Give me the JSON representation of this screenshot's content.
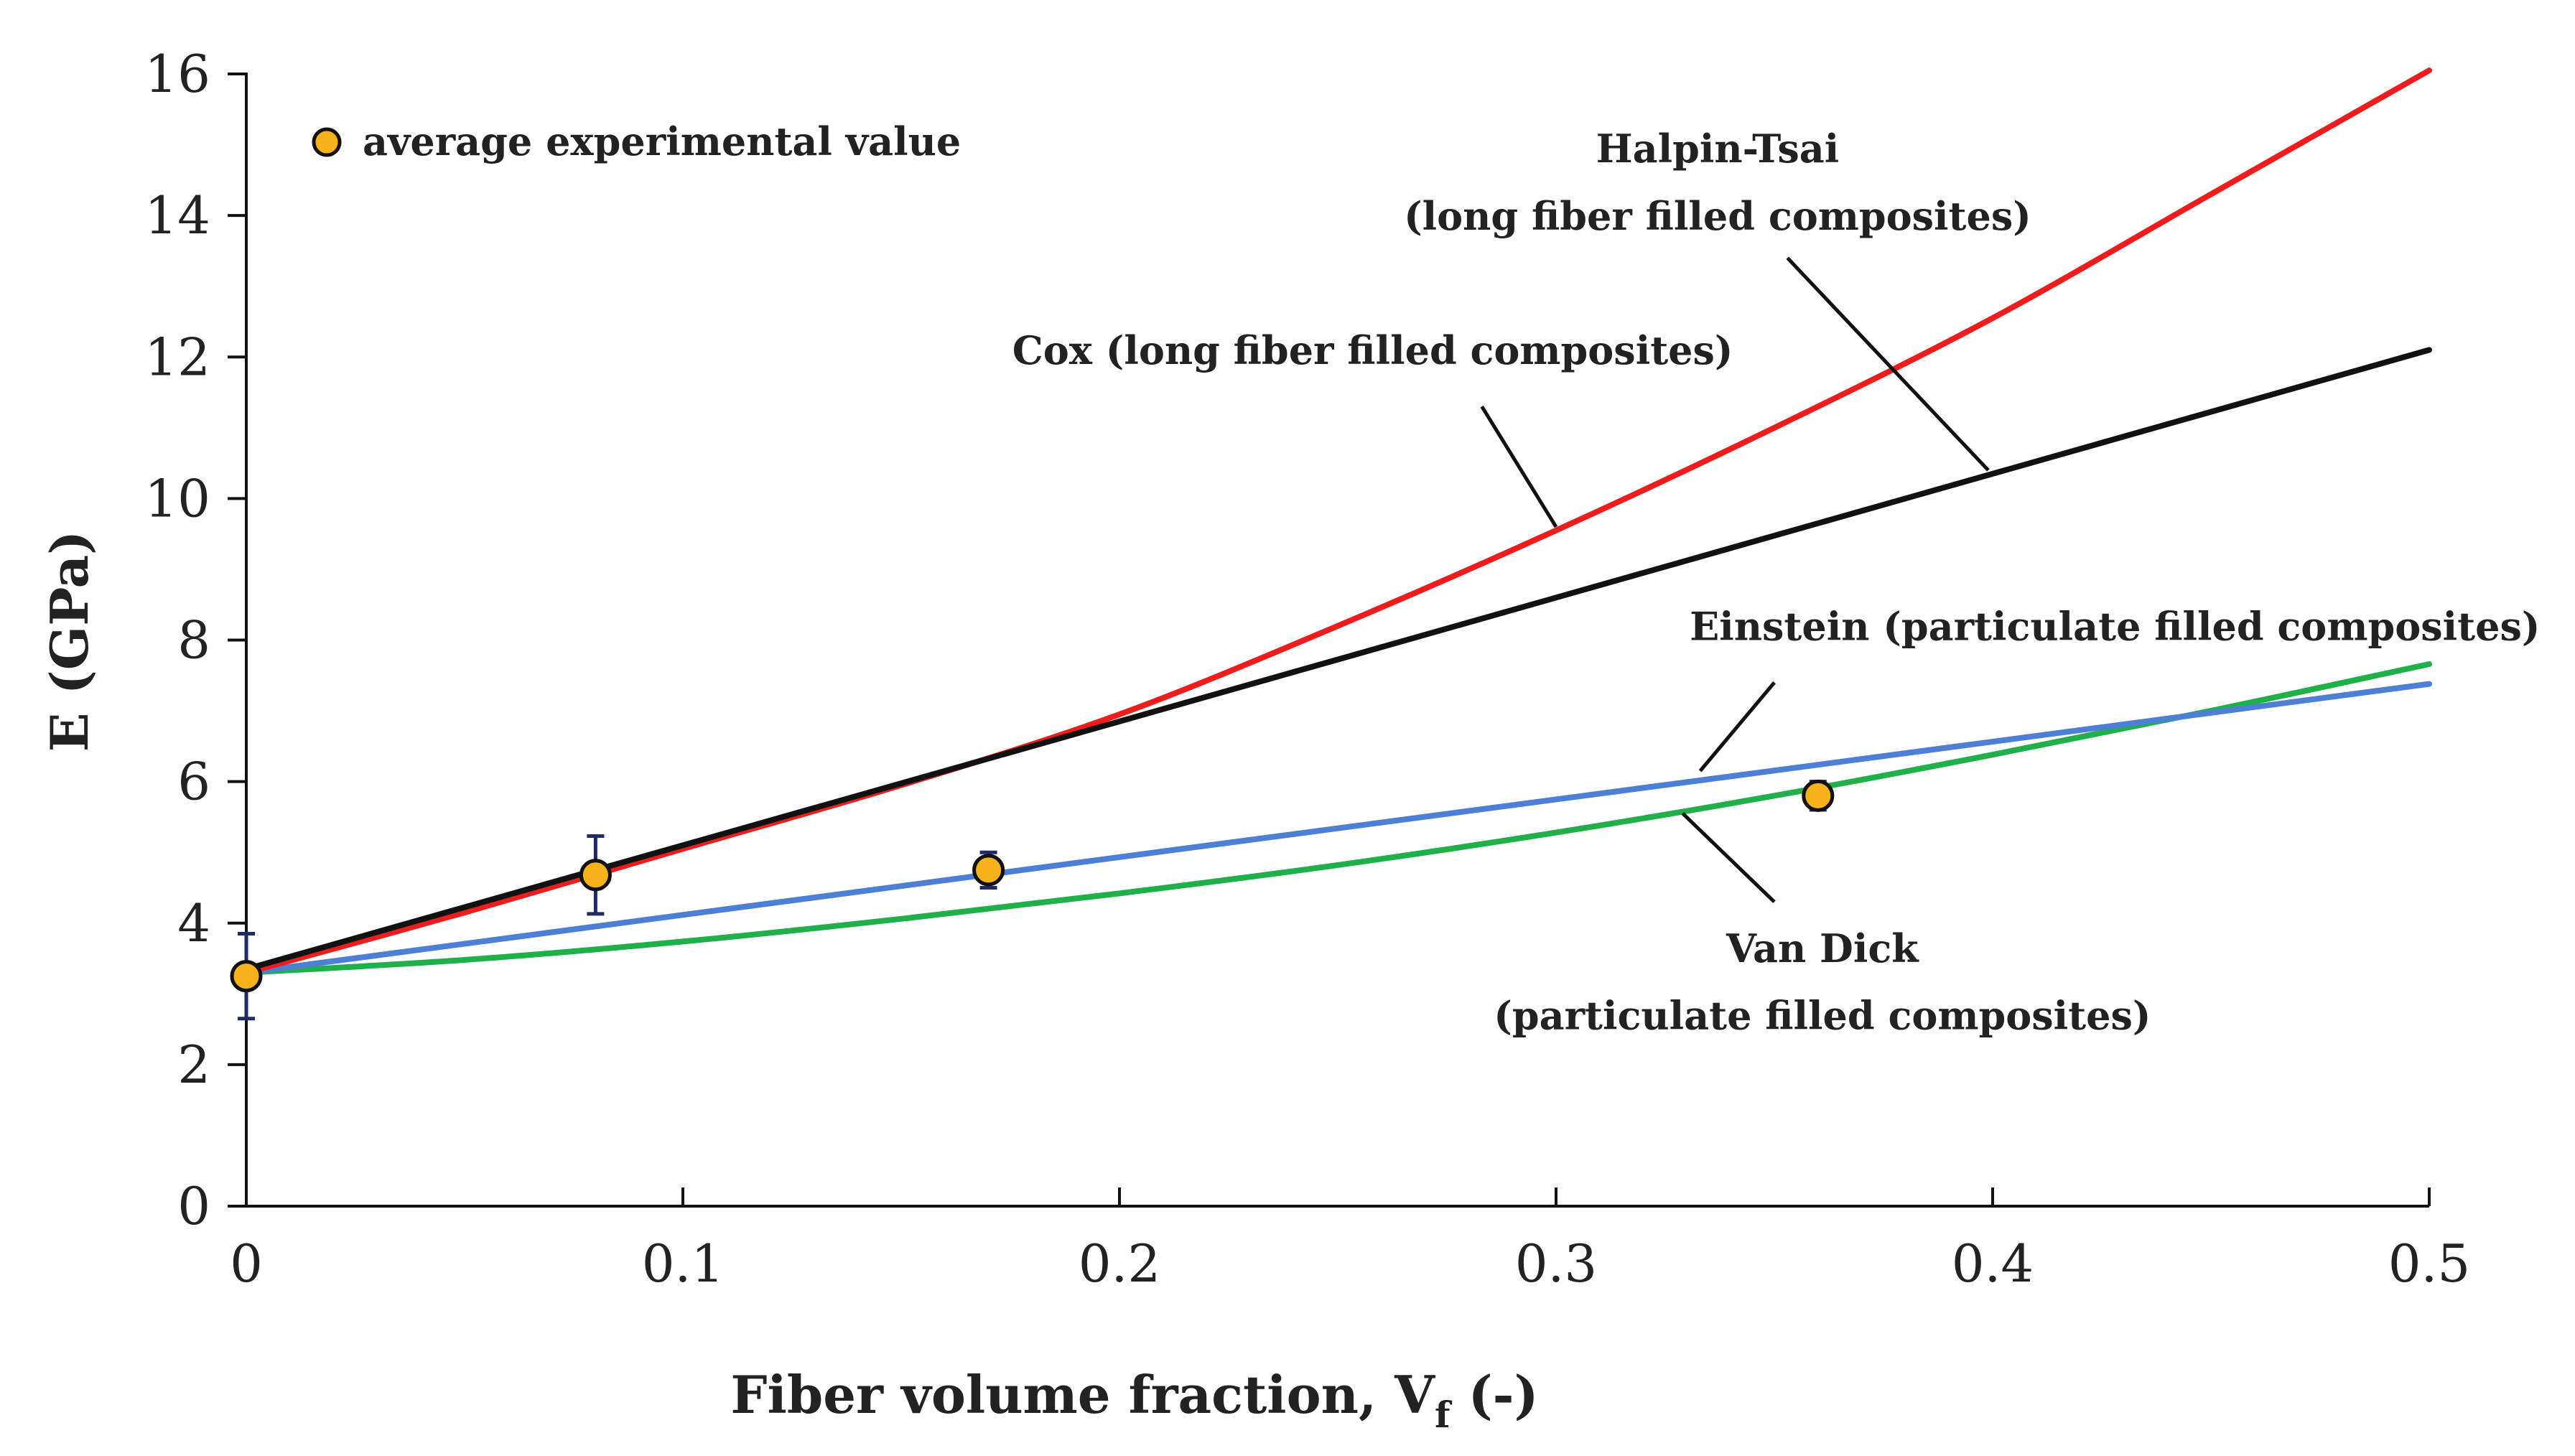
{
  "chart_data": {
    "type": "line",
    "title": "",
    "xlabel": "Fiber volume fraction, V",
    "xlabel_subscript": "f",
    "xlabel_suffix": " (-)",
    "ylabel": "E (GPa)",
    "xlim": [
      0,
      0.5
    ],
    "ylim": [
      0,
      16
    ],
    "xticks": [
      0,
      0.1,
      0.2,
      0.3,
      0.4,
      0.5
    ],
    "xtick_labels": [
      "0",
      "0.1",
      "0.2",
      "0.3",
      "0.4",
      "0.5"
    ],
    "yticks": [
      0,
      2,
      4,
      6,
      8,
      10,
      12,
      14,
      16
    ],
    "ytick_labels": [
      "0",
      "2",
      "4",
      "6",
      "8",
      "10",
      "12",
      "14",
      "16"
    ],
    "grid": false,
    "legend": {
      "position": "top-left",
      "label": "average experimental value"
    },
    "series": [
      {
        "name": "Halpin-Tsai",
        "color": "#ee1c1c",
        "x": [
          0,
          0.05,
          0.1,
          0.15,
          0.2,
          0.25,
          0.3,
          0.35,
          0.4,
          0.45,
          0.5
        ],
        "y": [
          3.3,
          4.15,
          5.05,
          5.95,
          6.95,
          8.2,
          9.55,
          11.0,
          12.55,
          14.3,
          16.05
        ]
      },
      {
        "name": "Cox",
        "color": "#111111",
        "x": [
          0,
          0.5
        ],
        "y": [
          3.35,
          12.1
        ]
      },
      {
        "name": "Einstein",
        "color": "#4d7fd6",
        "x": [
          0,
          0.5
        ],
        "y": [
          3.3,
          7.38
        ]
      },
      {
        "name": "Van Dick",
        "color": "#1fb04a",
        "x": [
          0,
          0.05,
          0.1,
          0.15,
          0.2,
          0.25,
          0.3,
          0.35,
          0.4,
          0.45,
          0.5
        ],
        "y": [
          3.3,
          3.48,
          3.74,
          4.06,
          4.42,
          4.82,
          5.28,
          5.8,
          6.38,
          7.0,
          7.66
        ]
      }
    ],
    "experimental": {
      "name": "average experimental value",
      "color": "#f5b21b",
      "points": [
        {
          "x": 0,
          "y": 3.25,
          "err": 0.6
        },
        {
          "x": 0.08,
          "y": 4.68,
          "err": 0.55
        },
        {
          "x": 0.17,
          "y": 4.75,
          "err": 0.25
        },
        {
          "x": 0.36,
          "y": 5.8,
          "err": 0.2
        }
      ]
    },
    "annotations": [
      {
        "lines": [
          "Halpin-Tsai",
          "(long fiber filled composites)"
        ],
        "anchor": "middle",
        "text_x": 0.337,
        "text_y": [
          14.75,
          13.8
        ],
        "leader": [
          [
            0.353,
            13.4
          ],
          [
            0.399,
            10.4
          ]
        ]
      },
      {
        "lines": [
          "Cox (long fiber filled composites)"
        ],
        "anchor": "middle",
        "text_x": 0.258,
        "text_y": [
          11.9
        ],
        "leader": [
          [
            0.283,
            11.3
          ],
          [
            0.3,
            9.6
          ]
        ]
      },
      {
        "lines": [
          "Einstein (particulate filled composites)"
        ],
        "anchor": "middle",
        "text_x": 0.428,
        "text_y": [
          8.0
        ],
        "leader": [
          [
            0.35,
            7.4
          ],
          [
            0.333,
            6.15
          ]
        ]
      },
      {
        "lines": [
          "Van Dick",
          "(particulate filled composites)"
        ],
        "anchor": "middle",
        "text_x": 0.361,
        "text_y": [
          3.45,
          2.5
        ],
        "leader": [
          [
            0.35,
            4.3
          ],
          [
            0.329,
            5.55
          ]
        ]
      }
    ]
  }
}
